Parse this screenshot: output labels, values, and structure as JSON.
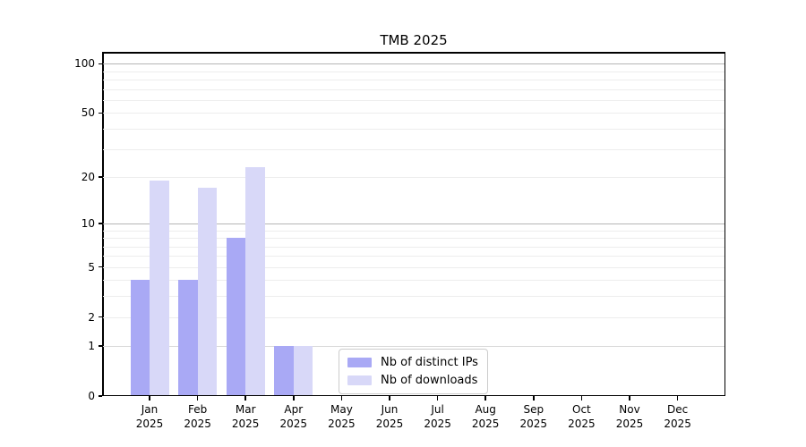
{
  "title": "TMB 2025",
  "chart_data": {
    "type": "bar",
    "title": "TMB 2025",
    "categories": [
      {
        "month": "Jan",
        "year": "2025"
      },
      {
        "month": "Feb",
        "year": "2025"
      },
      {
        "month": "Mar",
        "year": "2025"
      },
      {
        "month": "Apr",
        "year": "2025"
      },
      {
        "month": "May",
        "year": "2025"
      },
      {
        "month": "Jun",
        "year": "2025"
      },
      {
        "month": "Jul",
        "year": "2025"
      },
      {
        "month": "Aug",
        "year": "2025"
      },
      {
        "month": "Sep",
        "year": "2025"
      },
      {
        "month": "Oct",
        "year": "2025"
      },
      {
        "month": "Nov",
        "year": "2025"
      },
      {
        "month": "Dec",
        "year": "2025"
      }
    ],
    "series": [
      {
        "name": "Nb of distinct IPs",
        "color": "#a9a9f5",
        "values": [
          4,
          4,
          8,
          1,
          0,
          0,
          0,
          0,
          0,
          0,
          0,
          0
        ]
      },
      {
        "name": "Nb of downloads",
        "color": "#d8d8f8",
        "values": [
          19,
          17,
          23,
          1,
          0,
          0,
          0,
          0,
          0,
          0,
          0,
          0
        ]
      }
    ],
    "xlabel": "",
    "ylabel": "",
    "y_ticks": [
      0,
      1,
      2,
      5,
      10,
      20,
      50,
      100
    ],
    "yscale": "log(1+x)",
    "ylim": [
      0,
      118
    ],
    "grid": "horizontal",
    "legend_position": "inside bottom-center-left",
    "colors": {
      "axis": "#000000",
      "grid_minor": "#ededed",
      "grid_major": "#b5b5b5",
      "grid_unit": "#d9d9d9",
      "legend_border": "#cccccc",
      "background": "#ffffff"
    }
  }
}
